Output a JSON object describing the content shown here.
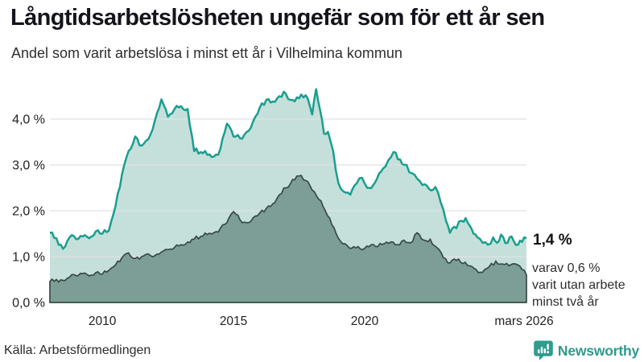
{
  "header": {
    "title": "Långtidsarbetslösheten ungefär som för ett år sen",
    "subtitle": "Andel som varit arbetslösa i minst ett år i Vilhelmina kommun"
  },
  "chart_data": {
    "type": "area",
    "title": "Långtidsarbetslösheten ungefär som för ett år sen",
    "subtitle": "Andel som varit arbetslösa i minst ett år i Vilhelmina kommun",
    "unit": "%",
    "grid": "on",
    "legend_position": "none",
    "colors": {
      "accent_line": "#1a9e8f",
      "light_fill": "#c5e0db",
      "dark_fill": "#7d9e96",
      "dark_line": "#364a46",
      "gridline": "#e1e1e1"
    },
    "x_axis": {
      "range": [
        2008.0,
        2026.17
      ],
      "ticks": [
        {
          "x": 2010,
          "label": "2010"
        },
        {
          "x": 2015,
          "label": "2015"
        },
        {
          "x": 2020,
          "label": "2020"
        },
        {
          "x": 2026.17,
          "label": "mars 2026"
        }
      ]
    },
    "y_axis": {
      "range": [
        0,
        4.7
      ],
      "ticks": [
        {
          "v": 0,
          "label": "0,0 %"
        },
        {
          "v": 1,
          "label": "1,0 %"
        },
        {
          "v": 2,
          "label": "2,0 %"
        },
        {
          "v": 3,
          "label": "3,0 %"
        },
        {
          "v": 4,
          "label": "4,0 %"
        }
      ]
    },
    "series": [
      {
        "name": "Arbetslösa minst ett år",
        "end_value": 1.4,
        "points": [
          [
            2008.0,
            1.52
          ],
          [
            2008.25,
            1.4
          ],
          [
            2008.5,
            1.17
          ],
          [
            2008.75,
            1.42
          ],
          [
            2009.0,
            1.38
          ],
          [
            2009.25,
            1.44
          ],
          [
            2009.5,
            1.4
          ],
          [
            2009.75,
            1.55
          ],
          [
            2010.0,
            1.5
          ],
          [
            2010.25,
            1.57
          ],
          [
            2010.5,
            2.1
          ],
          [
            2010.75,
            2.8
          ],
          [
            2011.0,
            3.3
          ],
          [
            2011.25,
            3.62
          ],
          [
            2011.5,
            3.42
          ],
          [
            2011.75,
            3.56
          ],
          [
            2012.0,
            3.96
          ],
          [
            2012.25,
            4.43
          ],
          [
            2012.5,
            4.05
          ],
          [
            2012.75,
            4.22
          ],
          [
            2013.0,
            4.28
          ],
          [
            2013.25,
            4.22
          ],
          [
            2013.5,
            3.3
          ],
          [
            2013.75,
            3.28
          ],
          [
            2014.0,
            3.22
          ],
          [
            2014.25,
            3.18
          ],
          [
            2014.5,
            3.35
          ],
          [
            2014.75,
            3.9
          ],
          [
            2015.0,
            3.62
          ],
          [
            2015.25,
            3.58
          ],
          [
            2015.5,
            3.72
          ],
          [
            2015.75,
            3.95
          ],
          [
            2016.0,
            4.25
          ],
          [
            2016.25,
            4.42
          ],
          [
            2016.5,
            4.38
          ],
          [
            2016.75,
            4.5
          ],
          [
            2017.0,
            4.55
          ],
          [
            2017.25,
            4.42
          ],
          [
            2017.5,
            4.45
          ],
          [
            2017.75,
            4.52
          ],
          [
            2018.0,
            4.1
          ],
          [
            2018.15,
            4.65
          ],
          [
            2018.3,
            4.2
          ],
          [
            2018.45,
            3.68
          ],
          [
            2018.6,
            3.72
          ],
          [
            2018.8,
            3.3
          ],
          [
            2019.0,
            2.6
          ],
          [
            2019.2,
            2.42
          ],
          [
            2019.45,
            2.35
          ],
          [
            2019.7,
            2.6
          ],
          [
            2019.9,
            2.72
          ],
          [
            2020.1,
            2.5
          ],
          [
            2020.4,
            2.62
          ],
          [
            2020.7,
            2.92
          ],
          [
            2020.9,
            3.1
          ],
          [
            2021.1,
            3.28
          ],
          [
            2021.35,
            3.12
          ],
          [
            2021.6,
            3.0
          ],
          [
            2021.8,
            2.82
          ],
          [
            2022.0,
            2.7
          ],
          [
            2022.2,
            2.56
          ],
          [
            2022.45,
            2.48
          ],
          [
            2022.7,
            2.52
          ],
          [
            2022.9,
            2.18
          ],
          [
            2023.1,
            1.78
          ],
          [
            2023.25,
            1.52
          ],
          [
            2023.5,
            1.62
          ],
          [
            2023.7,
            1.78
          ],
          [
            2023.85,
            1.84
          ],
          [
            2024.0,
            1.68
          ],
          [
            2024.15,
            1.5
          ],
          [
            2024.3,
            1.42
          ],
          [
            2024.5,
            1.3
          ],
          [
            2024.7,
            1.26
          ],
          [
            2024.9,
            1.42
          ],
          [
            2025.05,
            1.3
          ],
          [
            2025.2,
            1.48
          ],
          [
            2025.45,
            1.3
          ],
          [
            2025.6,
            1.44
          ],
          [
            2025.85,
            1.26
          ],
          [
            2026.0,
            1.32
          ],
          [
            2026.17,
            1.4
          ]
        ]
      },
      {
        "name": "Varit utan arbete minst två år",
        "end_value": 0.6,
        "points": [
          [
            2008.0,
            0.46
          ],
          [
            2008.25,
            0.5
          ],
          [
            2008.5,
            0.48
          ],
          [
            2008.75,
            0.55
          ],
          [
            2009.0,
            0.58
          ],
          [
            2009.25,
            0.63
          ],
          [
            2009.5,
            0.58
          ],
          [
            2009.75,
            0.65
          ],
          [
            2010.0,
            0.62
          ],
          [
            2010.25,
            0.7
          ],
          [
            2010.5,
            0.82
          ],
          [
            2010.75,
            0.98
          ],
          [
            2011.0,
            1.08
          ],
          [
            2011.25,
            0.96
          ],
          [
            2011.5,
            1.0
          ],
          [
            2011.75,
            1.06
          ],
          [
            2012.0,
            1.02
          ],
          [
            2012.25,
            1.1
          ],
          [
            2012.5,
            1.15
          ],
          [
            2012.75,
            1.2
          ],
          [
            2013.0,
            1.26
          ],
          [
            2013.25,
            1.32
          ],
          [
            2013.5,
            1.38
          ],
          [
            2013.75,
            1.44
          ],
          [
            2014.0,
            1.48
          ],
          [
            2014.25,
            1.52
          ],
          [
            2014.5,
            1.62
          ],
          [
            2014.75,
            1.74
          ],
          [
            2015.0,
            1.98
          ],
          [
            2015.25,
            1.8
          ],
          [
            2015.5,
            1.74
          ],
          [
            2015.75,
            1.85
          ],
          [
            2016.0,
            1.95
          ],
          [
            2016.25,
            2.05
          ],
          [
            2016.5,
            2.15
          ],
          [
            2016.75,
            2.35
          ],
          [
            2017.0,
            2.5
          ],
          [
            2017.25,
            2.68
          ],
          [
            2017.5,
            2.76
          ],
          [
            2017.75,
            2.66
          ],
          [
            2018.0,
            2.45
          ],
          [
            2018.25,
            2.25
          ],
          [
            2018.5,
            2.0
          ],
          [
            2018.75,
            1.7
          ],
          [
            2019.0,
            1.4
          ],
          [
            2019.25,
            1.28
          ],
          [
            2019.5,
            1.18
          ],
          [
            2019.75,
            1.22
          ],
          [
            2020.0,
            1.18
          ],
          [
            2020.25,
            1.26
          ],
          [
            2020.5,
            1.22
          ],
          [
            2020.75,
            1.28
          ],
          [
            2021.0,
            1.32
          ],
          [
            2021.25,
            1.26
          ],
          [
            2021.5,
            1.36
          ],
          [
            2021.75,
            1.3
          ],
          [
            2022.0,
            1.52
          ],
          [
            2022.25,
            1.36
          ],
          [
            2022.5,
            1.38
          ],
          [
            2022.75,
            1.2
          ],
          [
            2023.0,
            0.98
          ],
          [
            2023.25,
            0.86
          ],
          [
            2023.5,
            0.92
          ],
          [
            2023.75,
            0.85
          ],
          [
            2024.0,
            0.8
          ],
          [
            2024.25,
            0.72
          ],
          [
            2024.5,
            0.66
          ],
          [
            2024.75,
            0.78
          ],
          [
            2025.0,
            0.9
          ],
          [
            2025.25,
            0.84
          ],
          [
            2025.5,
            0.8
          ],
          [
            2025.75,
            0.84
          ],
          [
            2026.0,
            0.72
          ],
          [
            2026.17,
            0.6
          ]
        ]
      }
    ],
    "annotations": {
      "value_label": "1,4 %",
      "note_lines": [
        "varav 0,6 %",
        "varit utan arbete",
        "minst två år"
      ]
    }
  },
  "footer": {
    "source": "Källa: Arbetsförmedlingen",
    "brand": "Newsworthy"
  }
}
